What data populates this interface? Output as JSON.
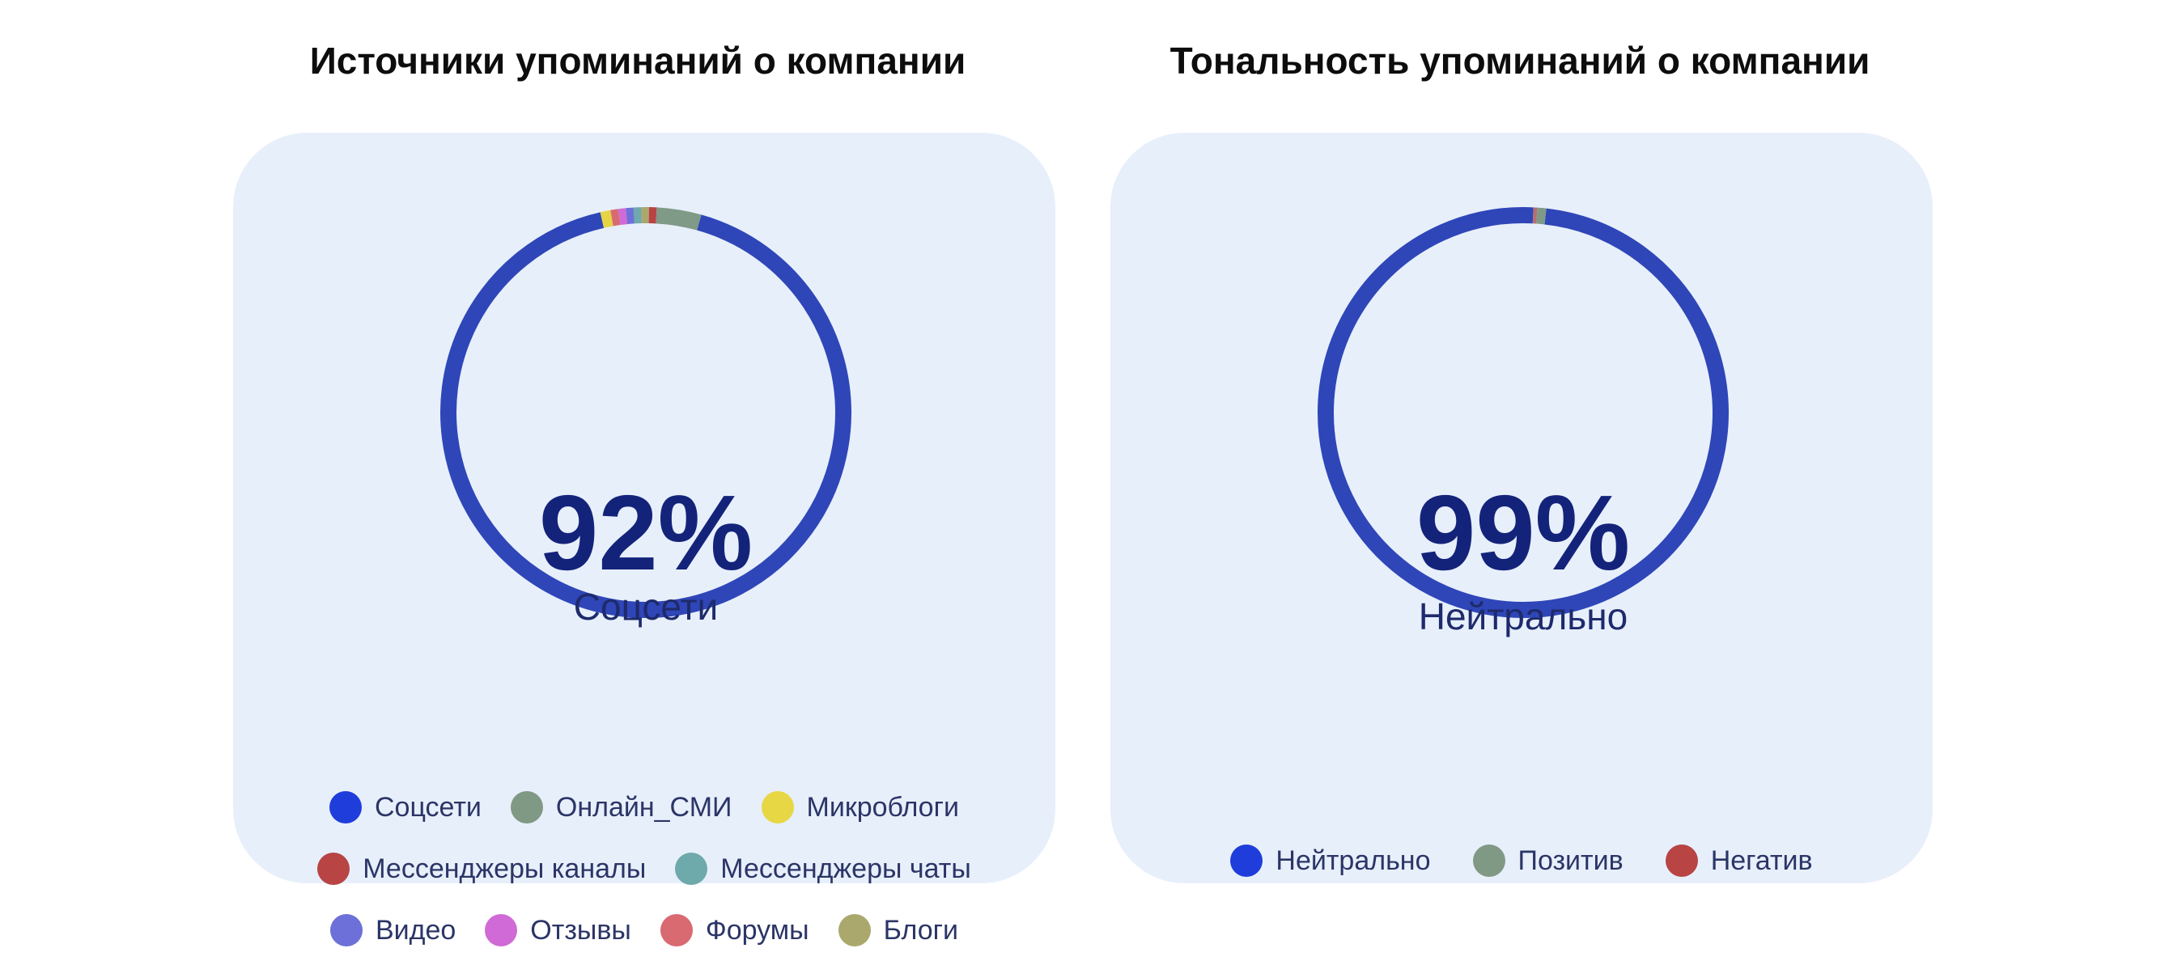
{
  "charts": {
    "left": {
      "title": "Источники упоминаний о компании",
      "center_value": "92%",
      "center_label": "Соцсети"
    },
    "right": {
      "title": "Тональность упоминаний о компании",
      "center_value": "99%",
      "center_label": "Нейтрально"
    }
  },
  "chart_data": [
    {
      "type": "pie",
      "title": "Источники упоминаний о компании",
      "legend_position": "bottom",
      "series": [
        {
          "name": "Соцсети",
          "value": 92,
          "color": "#2f46b8",
          "legend_color": "#1f3ddb"
        },
        {
          "name": "Онлайн_СМИ",
          "value": 3.5,
          "color": "#7f9a86",
          "legend_color": "#809984"
        },
        {
          "name": "Микроблоги",
          "value": 0.8,
          "color": "#e5d544",
          "legend_color": "#e7d745"
        },
        {
          "name": "Мессенджеры каналы",
          "value": 0.6,
          "color": "#b84444",
          "legend_color": "#b84444"
        },
        {
          "name": "Мессенджеры чаты",
          "value": 0.6,
          "color": "#6ea9ab",
          "legend_color": "#6ea9ab"
        },
        {
          "name": "Видео",
          "value": 0.6,
          "color": "#6c70d8",
          "legend_color": "#6c70d8"
        },
        {
          "name": "Отзывы",
          "value": 0.6,
          "color": "#d06ad6",
          "legend_color": "#d06ad6"
        },
        {
          "name": "Форумы",
          "value": 0.6,
          "color": "#d96a72",
          "legend_color": "#d96a72"
        },
        {
          "name": "Блоги",
          "value": 0.6,
          "color": "#aaa86c",
          "legend_color": "#aaa86c"
        }
      ],
      "arc_order": [
        "Соцсети",
        "Микроблоги",
        "Форумы",
        "Отзывы",
        "Видео",
        "Мессенджеры чаты",
        "Блоги",
        "Мессенджеры каналы",
        "Онлайн_СМИ"
      ],
      "legend_rows": [
        [
          "Соцсети",
          "Онлайн_СМИ",
          "Микроблоги"
        ],
        [
          "Мессенджеры каналы",
          "Мессенджеры чаты"
        ],
        [
          "Видео",
          "Отзывы",
          "Форумы",
          "Блоги"
        ]
      ]
    },
    {
      "type": "pie",
      "title": "Тональность упоминаний о компании",
      "legend_position": "bottom",
      "series": [
        {
          "name": "Нейтрально",
          "value": 99,
          "color": "#2f46b8",
          "legend_color": "#1f3ddb"
        },
        {
          "name": "Позитив",
          "value": 0.7,
          "color": "#7f9a86",
          "legend_color": "#809984"
        },
        {
          "name": "Негатив",
          "value": 0.3,
          "color": "#b86e6e",
          "legend_color": "#b84444"
        }
      ],
      "arc_order": [
        "Нейтрально",
        "Негатив",
        "Позитив"
      ],
      "legend_rows": [
        [
          "Нейтрально",
          "Позитив",
          "Негатив"
        ]
      ]
    }
  ]
}
